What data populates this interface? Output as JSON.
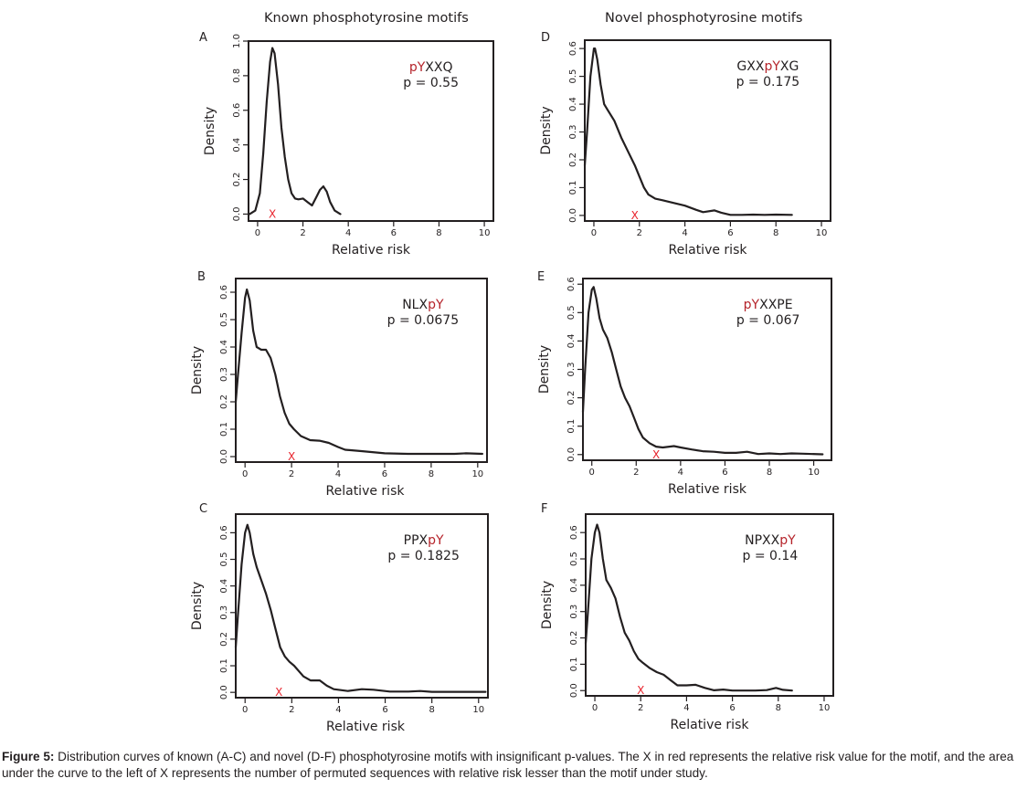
{
  "column_titles": {
    "left": "Known phosphotyrosine motifs",
    "right": "Novel phosphotyrosine motifs"
  },
  "caption": {
    "label": "Figure 5:",
    "text": " Distribution curves of known (A-C) and novel (D-F) phosphotyrosine motifs with insignificant p-values.  The X in red represents the relative risk value for the motif, and the area under the curve to the left of X represents the number of permuted sequences with relative risk lesser than the motif under study."
  },
  "colors": {
    "curve": "#231f20",
    "marker": "#e8242d",
    "motif_highlight": "#b5232a"
  },
  "chart_data": [
    {
      "panel": "A",
      "type": "line",
      "group": "Known phosphotyrosine motifs",
      "xlabel": "Relative risk",
      "ylabel": "Density",
      "xlim": [
        -0.4,
        10.4
      ],
      "ylim": [
        -0.04,
        1.0
      ],
      "xticks": [
        0,
        2,
        4,
        6,
        8,
        10
      ],
      "yticks": [
        0.0,
        0.2,
        0.4,
        0.6,
        0.8,
        1.0
      ],
      "ytick_labels": [
        "0.0",
        "0.2",
        "0.4",
        "0.6",
        "0.8",
        "1.0"
      ],
      "motif": [
        {
          "text": "pY",
          "hl": true
        },
        {
          "text": "XXQ",
          "hl": false
        }
      ],
      "pvalue": "p = 0.55",
      "marker_x": 0.65,
      "marker_label": "X",
      "x": [
        -0.35,
        -0.1,
        0.1,
        0.25,
        0.4,
        0.55,
        0.65,
        0.75,
        0.9,
        1.05,
        1.2,
        1.35,
        1.5,
        1.65,
        1.8,
        2.0,
        2.2,
        2.4,
        2.6,
        2.75,
        2.9,
        3.05,
        3.2,
        3.4,
        3.65
      ],
      "y": [
        0.0,
        0.02,
        0.12,
        0.35,
        0.65,
        0.88,
        0.96,
        0.93,
        0.75,
        0.5,
        0.33,
        0.2,
        0.12,
        0.09,
        0.085,
        0.09,
        0.07,
        0.05,
        0.1,
        0.14,
        0.16,
        0.13,
        0.07,
        0.02,
        0.0
      ]
    },
    {
      "panel": "B",
      "type": "line",
      "group": "Known phosphotyrosine motifs",
      "xlabel": "Relative risk",
      "ylabel": "Density",
      "xlim": [
        -0.4,
        10.4
      ],
      "ylim": [
        -0.02,
        0.65
      ],
      "xticks": [
        0,
        2,
        4,
        6,
        8,
        10
      ],
      "yticks": [
        0.0,
        0.1,
        0.2,
        0.3,
        0.4,
        0.5,
        0.6
      ],
      "ytick_labels": [
        "0.0",
        "0.1",
        "0.2",
        "0.3",
        "0.4",
        "0.5",
        "0.6"
      ],
      "motif": [
        {
          "text": "NLX",
          "hl": false
        },
        {
          "text": "pY",
          "hl": true
        }
      ],
      "pvalue": "p = 0.0675",
      "marker_x": 2.0,
      "marker_label": "X",
      "x": [
        -0.4,
        -0.3,
        -0.15,
        0.0,
        0.08,
        0.2,
        0.35,
        0.5,
        0.7,
        0.9,
        1.1,
        1.3,
        1.5,
        1.7,
        1.9,
        2.1,
        2.4,
        2.8,
        3.2,
        3.6,
        4.0,
        4.3,
        5.0,
        6.0,
        7.0,
        8.0,
        9.0,
        9.5,
        10.2
      ],
      "y": [
        0.2,
        0.3,
        0.45,
        0.58,
        0.61,
        0.57,
        0.46,
        0.4,
        0.39,
        0.39,
        0.36,
        0.3,
        0.22,
        0.16,
        0.12,
        0.1,
        0.075,
        0.06,
        0.058,
        0.05,
        0.035,
        0.025,
        0.02,
        0.012,
        0.01,
        0.01,
        0.01,
        0.012,
        0.01
      ]
    },
    {
      "panel": "C",
      "type": "line",
      "group": "Known phosphotyrosine motifs",
      "xlabel": "Relative risk",
      "ylabel": "Density",
      "xlim": [
        -0.4,
        10.4
      ],
      "ylim": [
        -0.02,
        0.67
      ],
      "xticks": [
        0,
        2,
        4,
        6,
        8,
        10
      ],
      "yticks": [
        0.0,
        0.1,
        0.2,
        0.3,
        0.4,
        0.5,
        0.6
      ],
      "ytick_labels": [
        "0.0",
        "0.1",
        "0.2",
        "0.3",
        "0.4",
        "0.5",
        "0.6"
      ],
      "motif": [
        {
          "text": "PPX",
          "hl": false
        },
        {
          "text": "pY",
          "hl": true
        }
      ],
      "pvalue": "p = 0.1825",
      "marker_x": 1.45,
      "marker_label": "X",
      "x": [
        -0.4,
        -0.3,
        -0.15,
        0.0,
        0.1,
        0.2,
        0.35,
        0.5,
        0.7,
        0.9,
        1.1,
        1.3,
        1.5,
        1.7,
        1.9,
        2.1,
        2.5,
        2.8,
        3.2,
        3.5,
        3.8,
        4.4,
        5.0,
        5.5,
        6.2,
        7.0,
        7.5,
        8.0,
        9.0,
        10.3
      ],
      "y": [
        0.17,
        0.3,
        0.48,
        0.6,
        0.63,
        0.6,
        0.52,
        0.47,
        0.42,
        0.37,
        0.31,
        0.24,
        0.17,
        0.135,
        0.115,
        0.1,
        0.06,
        0.045,
        0.045,
        0.025,
        0.012,
        0.005,
        0.012,
        0.01,
        0.003,
        0.003,
        0.005,
        0.002,
        0.002,
        0.002
      ]
    },
    {
      "panel": "D",
      "type": "line",
      "group": "Novel phosphotyrosine motifs",
      "xlabel": "Relative risk",
      "ylabel": "Density",
      "xlim": [
        -0.4,
        10.4
      ],
      "ylim": [
        -0.02,
        0.63
      ],
      "xticks": [
        0,
        2,
        4,
        6,
        8,
        10
      ],
      "yticks": [
        0.0,
        0.1,
        0.2,
        0.3,
        0.4,
        0.5,
        0.6
      ],
      "ytick_labels": [
        "0.0",
        "0.1",
        "0.2",
        "0.3",
        "0.4",
        "0.5",
        "0.6"
      ],
      "motif": [
        {
          "text": "GXX",
          "hl": false
        },
        {
          "text": "pY",
          "hl": true
        },
        {
          "text": "XG",
          "hl": false
        }
      ],
      "pvalue": "p =  0.175",
      "marker_x": 1.8,
      "marker_label": "X",
      "x": [
        -0.4,
        -0.3,
        -0.15,
        0.0,
        0.05,
        0.15,
        0.3,
        0.45,
        0.6,
        0.9,
        1.2,
        1.5,
        1.8,
        2.0,
        2.2,
        2.4,
        2.7,
        3.0,
        3.5,
        4.0,
        4.5,
        4.8,
        5.3,
        5.6,
        6.0,
        6.5,
        7.0,
        7.5,
        8.0,
        8.7
      ],
      "y": [
        0.18,
        0.3,
        0.5,
        0.6,
        0.6,
        0.56,
        0.47,
        0.4,
        0.38,
        0.34,
        0.28,
        0.23,
        0.18,
        0.14,
        0.1,
        0.075,
        0.06,
        0.055,
        0.045,
        0.035,
        0.02,
        0.012,
        0.018,
        0.01,
        0.002,
        0.002,
        0.003,
        0.002,
        0.003,
        0.002
      ]
    },
    {
      "panel": "E",
      "type": "line",
      "group": "Novel phosphotyrosine motifs",
      "xlabel": "Relative risk",
      "ylabel": "Density",
      "xlim": [
        -0.4,
        10.8
      ],
      "ylim": [
        -0.02,
        0.62
      ],
      "xticks": [
        0,
        2,
        4,
        6,
        8,
        10
      ],
      "yticks": [
        0.0,
        0.1,
        0.2,
        0.3,
        0.4,
        0.5,
        0.6
      ],
      "ytick_labels": [
        "0.0",
        "0.1",
        "0.2",
        "0.3",
        "0.4",
        "0.5",
        "0.6"
      ],
      "motif": [
        {
          "text": "pY",
          "hl": true
        },
        {
          "text": "XXPE",
          "hl": false
        }
      ],
      "pvalue": "p =  0.067",
      "marker_x": 2.9,
      "marker_label": "X",
      "x": [
        -0.4,
        -0.3,
        -0.15,
        0.0,
        0.08,
        0.2,
        0.35,
        0.5,
        0.7,
        0.9,
        1.1,
        1.3,
        1.5,
        1.7,
        1.9,
        2.1,
        2.3,
        2.6,
        2.9,
        3.2,
        3.7,
        4.0,
        4.5,
        5.0,
        5.5,
        6.0,
        6.5,
        7.0,
        7.5,
        8.0,
        8.5,
        9.0,
        9.5,
        10.4
      ],
      "y": [
        0.15,
        0.3,
        0.5,
        0.58,
        0.59,
        0.55,
        0.48,
        0.44,
        0.41,
        0.36,
        0.3,
        0.24,
        0.2,
        0.17,
        0.13,
        0.09,
        0.06,
        0.04,
        0.028,
        0.025,
        0.03,
        0.025,
        0.018,
        0.012,
        0.01,
        0.006,
        0.006,
        0.01,
        0.002,
        0.004,
        0.002,
        0.004,
        0.003,
        0.001
      ]
    },
    {
      "panel": "F",
      "type": "line",
      "group": "Novel phosphotyrosine motifs",
      "xlabel": "Relative risk",
      "ylabel": "Density",
      "xlim": [
        -0.4,
        10.4
      ],
      "ylim": [
        -0.02,
        0.67
      ],
      "xticks": [
        0,
        2,
        4,
        6,
        8,
        10
      ],
      "yticks": [
        0.0,
        0.1,
        0.2,
        0.3,
        0.4,
        0.5,
        0.6
      ],
      "ytick_labels": [
        "0.0",
        "0.1",
        "0.2",
        "0.3",
        "0.4",
        "0.5",
        "0.6"
      ],
      "motif": [
        {
          "text": "NPXX",
          "hl": false
        },
        {
          "text": "pY",
          "hl": true
        }
      ],
      "pvalue": "p = 0.14",
      "marker_x": 2.0,
      "marker_label": "X",
      "x": [
        -0.4,
        -0.3,
        -0.15,
        0.0,
        0.1,
        0.2,
        0.35,
        0.5,
        0.7,
        0.9,
        1.1,
        1.3,
        1.5,
        1.7,
        1.9,
        2.1,
        2.4,
        2.7,
        3.0,
        3.3,
        3.6,
        4.0,
        4.4,
        4.8,
        5.2,
        5.6,
        6.0,
        6.5,
        7.0,
        7.5,
        7.9,
        8.2,
        8.6
      ],
      "y": [
        0.18,
        0.3,
        0.5,
        0.6,
        0.63,
        0.6,
        0.5,
        0.42,
        0.39,
        0.35,
        0.28,
        0.22,
        0.19,
        0.15,
        0.12,
        0.105,
        0.085,
        0.07,
        0.06,
        0.04,
        0.02,
        0.02,
        0.022,
        0.01,
        0.001,
        0.004,
        0.0,
        0.0,
        0.0,
        0.002,
        0.01,
        0.003,
        0.0
      ]
    }
  ]
}
